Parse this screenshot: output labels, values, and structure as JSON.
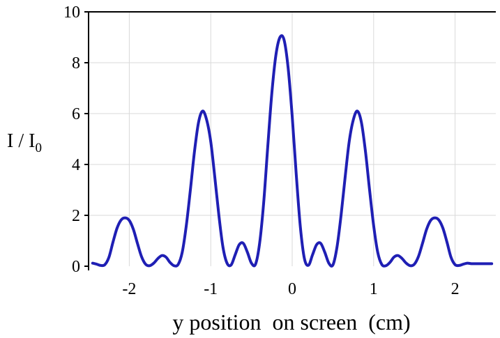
{
  "chart_data": {
    "type": "line",
    "xlabel": "y position  on screen  (cm)",
    "ylabel": {
      "main": "I / I",
      "subscript": "0"
    },
    "xlim": [
      -2.5,
      2.5
    ],
    "ylim": [
      0,
      10
    ],
    "xticks": [
      -2,
      -1,
      0,
      1,
      2
    ],
    "xtick_labels": [
      "-2",
      "-1",
      "0",
      "1",
      "2"
    ],
    "yticks": [
      0,
      2,
      4,
      6,
      8,
      10
    ],
    "ytick_labels": [
      "0",
      "2",
      "4",
      "6",
      "8",
      "10"
    ],
    "grid": true,
    "line_color": "#1f1fb4",
    "grid_color": "#d9d9d9",
    "series": [
      {
        "x": [
          -2.45,
          -2.4,
          -2.35,
          -2.3,
          -2.25,
          -2.2,
          -2.15,
          -2.1,
          -2.05,
          -2.0,
          -1.95,
          -1.9,
          -1.85,
          -1.8,
          -1.75,
          -1.7,
          -1.65,
          -1.6,
          -1.55,
          -1.5,
          -1.45,
          -1.4,
          -1.35,
          -1.3,
          -1.25,
          -1.2,
          -1.15,
          -1.1,
          -1.05,
          -1.0,
          -0.95,
          -0.9,
          -0.85,
          -0.8,
          -0.75,
          -0.7,
          -0.65,
          -0.6,
          -0.55,
          -0.5,
          -0.45,
          -0.4,
          -0.35,
          -0.3,
          -0.25,
          -0.2,
          -0.15,
          -0.1,
          -0.05,
          0.0,
          0.05,
          0.1,
          0.15,
          0.2,
          0.25,
          0.3,
          0.35,
          0.4,
          0.45,
          0.5,
          0.55,
          0.6,
          0.65,
          0.7,
          0.75,
          0.8,
          0.85,
          0.9,
          0.95,
          1.0,
          1.05,
          1.1,
          1.15,
          1.2,
          1.25,
          1.3,
          1.35,
          1.4,
          1.45,
          1.5,
          1.55,
          1.6,
          1.65,
          1.7,
          1.75,
          1.8,
          1.85,
          1.9,
          1.95,
          2.0,
          2.05,
          2.1,
          2.15,
          2.2,
          2.25,
          2.3,
          2.35,
          2.4,
          2.45
        ],
        "y": [
          0.12,
          0.08,
          0.03,
          0.06,
          0.35,
          0.95,
          1.5,
          1.82,
          1.9,
          1.8,
          1.45,
          0.9,
          0.38,
          0.08,
          0.02,
          0.12,
          0.3,
          0.42,
          0.36,
          0.15,
          0.02,
          0.07,
          0.55,
          1.6,
          3.0,
          4.5,
          5.65,
          6.1,
          5.75,
          4.9,
          3.5,
          2.0,
          0.75,
          0.12,
          0.05,
          0.45,
          0.85,
          0.9,
          0.55,
          0.12,
          0.08,
          0.9,
          2.5,
          4.7,
          6.8,
          8.3,
          9.0,
          8.9,
          7.8,
          5.9,
          3.6,
          1.55,
          0.3,
          0.04,
          0.45,
          0.85,
          0.9,
          0.55,
          0.12,
          0.05,
          0.75,
          2.0,
          3.5,
          4.9,
          5.75,
          6.1,
          5.65,
          4.5,
          3.0,
          1.6,
          0.55,
          0.07,
          0.02,
          0.15,
          0.36,
          0.42,
          0.3,
          0.12,
          0.02,
          0.08,
          0.38,
          0.9,
          1.45,
          1.8,
          1.9,
          1.82,
          1.5,
          0.95,
          0.35,
          0.06,
          0.03,
          0.08,
          0.12,
          0.1,
          0.1,
          0.1,
          0.1,
          0.1,
          0.1
        ]
      }
    ]
  }
}
